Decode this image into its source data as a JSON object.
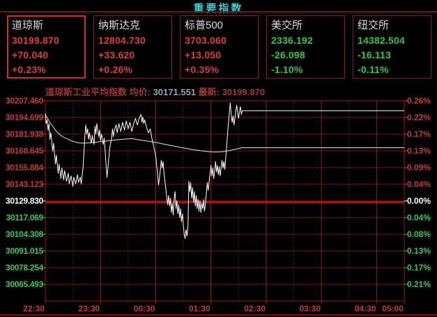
{
  "header": {
    "title": "重要指数"
  },
  "indices": [
    {
      "name": "道琼斯",
      "value": "30199.870",
      "change": "+70.040",
      "pct": "+0.23%",
      "direction": "up",
      "selected": true
    },
    {
      "name": "纳斯达克",
      "value": "12804.730",
      "change": "+33.620",
      "pct": "+0.26%",
      "direction": "up",
      "selected": false
    },
    {
      "name": "标普500",
      "value": "3703.060",
      "change": "+13.050",
      "pct": "+0.35%",
      "direction": "up",
      "selected": false
    },
    {
      "name": "美交所",
      "value": "2336.192",
      "change": "-26.098",
      "pct": "-1.10%",
      "direction": "down",
      "selected": false
    },
    {
      "name": "纽交所",
      "value": "14382.504",
      "change": "-16.113",
      "pct": "-0.11%",
      "direction": "down",
      "selected": false
    }
  ],
  "info_line": {
    "name": "道琼斯工业平均指数",
    "avg_label": " 均价: ",
    "avg_value": "30171.551",
    "last_label": " 最新: ",
    "last_value": "30199.870"
  },
  "colors": {
    "background": "#000000",
    "title": "#35d6d6",
    "divider": "#7a1010",
    "card_border": "#8b1a1a",
    "card_border_selected": "#d42a2a",
    "card_name": "#dcdcdc",
    "up": "#e03c3c",
    "down": "#2ec84a",
    "axis_up": "#c23a3a",
    "axis_down": "#3cc45a",
    "axis_zero": "#ffffff",
    "grid_h": "#7d1313",
    "grid_v": "#9c1d1d",
    "grid_dotted": "#6e3414",
    "zero_line": "#b01212",
    "price_line": "#ffffff",
    "avg_line": "#eae6c6",
    "time_label": "#c23a3a",
    "info_label": "#a23636",
    "info_avg_value": "#98a0b0",
    "info_last_value": "#a23636"
  },
  "chart_data": {
    "type": "line",
    "title": "道琼斯工业平均指数",
    "prev_close": 30129.83,
    "last": 30199.87,
    "average": 30171.551,
    "y_top": 30207.46,
    "y_bottom": 30054.328,
    "grid_rows": 12,
    "t_min": 0,
    "t_max": 390,
    "y_axis_left_labels": [
      "30207.460",
      "30194.699",
      "30181.938",
      "30168.645",
      "30155.884",
      "30143.123",
      "30129.830",
      "30117.069",
      "30104.308",
      "30091.015",
      "30078.254",
      "30065.493"
    ],
    "y_axis_right_labels": [
      "0.26%",
      "0.22%",
      "0.17%",
      "0.13%",
      "0.09%",
      "0.04%",
      "0.00%",
      "0.04%",
      "0.08%",
      "0.13%",
      "0.17%",
      "0.21%"
    ],
    "x_ticks": [
      {
        "t": 0,
        "label": "22:30"
      },
      {
        "t": 60,
        "label": "23:30"
      },
      {
        "t": 120,
        "label": "00:30"
      },
      {
        "t": 180,
        "label": "01:30"
      },
      {
        "t": 240,
        "label": "02:30"
      },
      {
        "t": 300,
        "label": "03:30"
      },
      {
        "t": 360,
        "label": "04:30"
      },
      {
        "t": 390,
        "label": "05:00"
      }
    ],
    "x_dotted": [
      30,
      90,
      150,
      210,
      270,
      330
    ],
    "series": [
      {
        "name": "price",
        "color_key": "price_line",
        "width": 1,
        "points": [
          [
            0,
            30198
          ],
          [
            1,
            30190
          ],
          [
            2,
            30193
          ],
          [
            3,
            30185
          ],
          [
            4,
            30190
          ],
          [
            5,
            30178
          ],
          [
            6,
            30183
          ],
          [
            8,
            30169
          ],
          [
            9,
            30175
          ],
          [
            11,
            30159
          ],
          [
            12,
            30166
          ],
          [
            14,
            30152
          ],
          [
            15,
            30159
          ],
          [
            17,
            30148
          ],
          [
            18,
            30156
          ],
          [
            20,
            30147
          ],
          [
            21,
            30154
          ],
          [
            23,
            30146
          ],
          [
            25,
            30152
          ],
          [
            26,
            30144
          ],
          [
            28,
            30150
          ],
          [
            30,
            30142
          ],
          [
            31,
            30149
          ],
          [
            33,
            30144
          ],
          [
            35,
            30151
          ],
          [
            36,
            30145
          ],
          [
            38,
            30149
          ],
          [
            39,
            30144
          ],
          [
            40,
            30150
          ],
          [
            41,
            30156
          ],
          [
            42,
            30168
          ],
          [
            43,
            30181
          ],
          [
            44,
            30189
          ],
          [
            45,
            30182
          ],
          [
            46,
            30186
          ],
          [
            47,
            30178
          ],
          [
            48,
            30183
          ],
          [
            50,
            30175
          ],
          [
            51,
            30181
          ],
          [
            53,
            30174
          ],
          [
            54,
            30188
          ],
          [
            55,
            30182
          ],
          [
            56,
            30190
          ],
          [
            58,
            30180
          ],
          [
            59,
            30185
          ],
          [
            60,
            30177
          ],
          [
            61,
            30182
          ],
          [
            63,
            30174
          ],
          [
            64,
            30179
          ],
          [
            65,
            30170
          ],
          [
            66,
            30158
          ],
          [
            67,
            30149
          ],
          [
            68,
            30156
          ],
          [
            69,
            30164
          ],
          [
            70,
            30171
          ],
          [
            72,
            30179
          ],
          [
            73,
            30186
          ],
          [
            74,
            30180
          ],
          [
            75,
            30185
          ],
          [
            77,
            30189
          ],
          [
            78,
            30183
          ],
          [
            80,
            30190
          ],
          [
            82,
            30184
          ],
          [
            84,
            30191
          ],
          [
            86,
            30185
          ],
          [
            88,
            30192
          ],
          [
            90,
            30186
          ],
          [
            92,
            30191
          ],
          [
            94,
            30184
          ],
          [
            96,
            30190
          ],
          [
            98,
            30194
          ],
          [
            100,
            30189
          ],
          [
            102,
            30194
          ],
          [
            104,
            30197
          ],
          [
            105,
            30191
          ],
          [
            106,
            30195
          ],
          [
            107,
            30190
          ],
          [
            108,
            30193
          ],
          [
            110,
            30187
          ],
          [
            112,
            30183
          ],
          [
            114,
            30186
          ],
          [
            116,
            30178
          ],
          [
            118,
            30172
          ],
          [
            120,
            30165
          ],
          [
            121,
            30158
          ],
          [
            122,
            30152
          ],
          [
            123,
            30143
          ],
          [
            124,
            30148
          ],
          [
            125,
            30155
          ],
          [
            126,
            30162
          ],
          [
            127,
            30156
          ],
          [
            128,
            30161
          ],
          [
            129,
            30152
          ],
          [
            130,
            30146
          ],
          [
            131,
            30140
          ],
          [
            132,
            30133
          ],
          [
            133,
            30128
          ],
          [
            134,
            30135
          ],
          [
            135,
            30127
          ],
          [
            136,
            30133
          ],
          [
            137,
            30122
          ],
          [
            138,
            30129
          ],
          [
            139,
            30120
          ],
          [
            140,
            30133
          ],
          [
            141,
            30138
          ],
          [
            142,
            30125
          ],
          [
            143,
            30131
          ],
          [
            144,
            30121
          ],
          [
            145,
            30128
          ],
          [
            146,
            30118
          ],
          [
            147,
            30125
          ],
          [
            148,
            30115
          ],
          [
            149,
            30121
          ],
          [
            150,
            30112
          ],
          [
            151,
            30105
          ],
          [
            152,
            30102
          ],
          [
            153,
            30109
          ],
          [
            154,
            30104
          ],
          [
            155,
            30111
          ],
          [
            156,
            30146
          ],
          [
            157,
            30138
          ],
          [
            158,
            30145
          ],
          [
            159,
            30133
          ],
          [
            160,
            30141
          ],
          [
            161,
            30130
          ],
          [
            162,
            30138
          ],
          [
            163,
            30127
          ],
          [
            164,
            30135
          ],
          [
            165,
            30125
          ],
          [
            166,
            30132
          ],
          [
            167,
            30123
          ],
          [
            168,
            30131
          ],
          [
            169,
            30122
          ],
          [
            170,
            30129
          ],
          [
            171,
            30125
          ],
          [
            172,
            30132
          ],
          [
            173,
            30123
          ],
          [
            174,
            30129
          ],
          [
            175,
            30137
          ],
          [
            176,
            30145
          ],
          [
            177,
            30139
          ],
          [
            178,
            30146
          ],
          [
            179,
            30152
          ],
          [
            180,
            30158
          ],
          [
            181,
            30150
          ],
          [
            182,
            30156
          ],
          [
            183,
            30148
          ],
          [
            184,
            30154
          ],
          [
            185,
            30161
          ],
          [
            186,
            30153
          ],
          [
            187,
            30158
          ],
          [
            188,
            30151
          ],
          [
            189,
            30157
          ],
          [
            190,
            30150
          ],
          [
            191,
            30156
          ],
          [
            192,
            30162
          ],
          [
            193,
            30156
          ],
          [
            194,
            30161
          ],
          [
            195,
            30155
          ],
          [
            196,
            30163
          ],
          [
            197,
            30172
          ],
          [
            198,
            30182
          ],
          [
            199,
            30191
          ],
          [
            200,
            30199
          ],
          [
            201,
            30206
          ],
          [
            202,
            30197
          ],
          [
            203,
            30191
          ],
          [
            204,
            30196
          ],
          [
            205,
            30189
          ],
          [
            206,
            30194
          ],
          [
            207,
            30200
          ],
          [
            208,
            30204
          ],
          [
            209,
            30198
          ],
          [
            210,
            30194
          ],
          [
            211,
            30199
          ],
          [
            212,
            30203
          ],
          [
            213,
            30197
          ],
          [
            214,
            30199.87
          ],
          [
            390,
            30199.87
          ]
        ]
      },
      {
        "name": "average",
        "color_key": "avg_line",
        "width": 1,
        "points": [
          [
            0,
            30197
          ],
          [
            5,
            30191
          ],
          [
            10,
            30186
          ],
          [
            15,
            30182
          ],
          [
            20,
            30179.5
          ],
          [
            25,
            30178
          ],
          [
            30,
            30176.5
          ],
          [
            35,
            30175.5
          ],
          [
            40,
            30175
          ],
          [
            50,
            30175.4
          ],
          [
            60,
            30176.2
          ],
          [
            70,
            30177
          ],
          [
            80,
            30177.8
          ],
          [
            90,
            30178.3
          ],
          [
            95,
            30178.5
          ],
          [
            100,
            30177.8
          ],
          [
            110,
            30176.8
          ],
          [
            120,
            30175.6
          ],
          [
            130,
            30174.2
          ],
          [
            140,
            30172.8
          ],
          [
            150,
            30171.4
          ],
          [
            160,
            30170.2
          ],
          [
            170,
            30169.2
          ],
          [
            180,
            30168.4
          ],
          [
            185,
            30168.2
          ],
          [
            190,
            30168.4
          ],
          [
            195,
            30168.8
          ],
          [
            200,
            30169.4
          ],
          [
            205,
            30170.2
          ],
          [
            210,
            30171
          ],
          [
            214,
            30171.551
          ],
          [
            390,
            30171.551
          ]
        ]
      }
    ]
  }
}
